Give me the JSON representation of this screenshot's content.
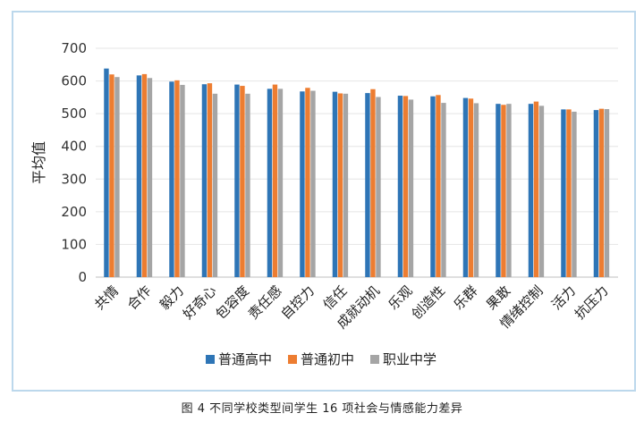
{
  "caption": "图 4  不同学校类型间学生 16 项社会与情感能力差异",
  "chart_data": {
    "type": "bar",
    "title": "",
    "xlabel": "",
    "ylabel": "平均值",
    "ylim": [
      0,
      700
    ],
    "yticks": [
      0,
      100,
      200,
      300,
      400,
      500,
      600,
      700
    ],
    "grid": "horizontal",
    "legend": "bottom",
    "categories": [
      "共情",
      "合作",
      "毅力",
      "好奇心",
      "包容度",
      "责任感",
      "自控力",
      "信任",
      "成就动机",
      "乐观",
      "创造性",
      "乐群",
      "果敢",
      "情绪控制",
      "活力",
      "抗压力"
    ],
    "series": [
      {
        "name": "普通高中",
        "color": "#2e75b6",
        "values": [
          638,
          617,
          598,
          590,
          589,
          576,
          568,
          567,
          563,
          555,
          553,
          548,
          530,
          530,
          513,
          511
        ]
      },
      {
        "name": "普通初中",
        "color": "#ed7d31",
        "values": [
          620,
          621,
          602,
          593,
          585,
          589,
          579,
          562,
          575,
          554,
          557,
          546,
          527,
          537,
          513,
          515
        ]
      },
      {
        "name": "职业中学",
        "color": "#a5a5a5",
        "values": [
          612,
          609,
          588,
          561,
          561,
          576,
          570,
          561,
          551,
          543,
          533,
          532,
          530,
          524,
          506,
          514
        ]
      }
    ]
  }
}
